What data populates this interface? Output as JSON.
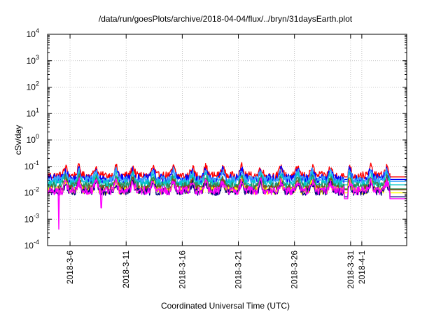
{
  "chart_data": {
    "type": "line",
    "title": "/data/run/goesPlots/archive/2018-04-04/flux/../bryn/31daysEarth.plot",
    "xlabel": "Coordinated Universal Time (UTC)",
    "ylabel": "cSv/day",
    "yscale": "log",
    "ylim": [
      0.0001,
      10000
    ],
    "xlim": [
      "2018-03-04",
      "2018-04-05"
    ],
    "grid": true,
    "legend": "none",
    "y_ticks": [
      {
        "base": "10",
        "exp": "-4"
      },
      {
        "base": "10",
        "exp": "-3"
      },
      {
        "base": "10",
        "exp": "-2"
      },
      {
        "base": "10",
        "exp": "-1"
      },
      {
        "base": "10",
        "exp": "0"
      },
      {
        "base": "10",
        "exp": "1"
      },
      {
        "base": "10",
        "exp": "2"
      },
      {
        "base": "10",
        "exp": "3"
      },
      {
        "base": "10",
        "exp": "4"
      }
    ],
    "x_ticks": [
      {
        "date": "2018-03-06",
        "label": "2018-3-6"
      },
      {
        "date": "2018-03-11",
        "label": "2018-3-11"
      },
      {
        "date": "2018-03-16",
        "label": "2018-3-16"
      },
      {
        "date": "2018-03-21",
        "label": "2018-3-21"
      },
      {
        "date": "2018-03-26",
        "label": "2018-3-26"
      },
      {
        "date": "2018-03-31",
        "label": "2018-3-31"
      },
      {
        "date": "2018-04-01",
        "label": "2018-4-1"
      }
    ],
    "series": [
      {
        "color": "#ff0000",
        "level": 0.045,
        "tail": 0.04,
        "spread": 0.3,
        "dips": []
      },
      {
        "color": "#0000ff",
        "level": 0.034,
        "tail": 0.032,
        "spread": 0.35,
        "dips": []
      },
      {
        "color": "#3aa8ff",
        "level": 0.03,
        "tail": 0.027,
        "spread": 0.32,
        "dips": []
      },
      {
        "color": "#00c8c8",
        "level": 0.022,
        "tail": 0.02,
        "spread": 0.32,
        "dips": []
      },
      {
        "color": "#2e8b57",
        "level": 0.018,
        "tail": 0.014,
        "spread": 0.3,
        "dips": []
      },
      {
        "color": "#8b4513",
        "level": 0.014,
        "tail": 0.013,
        "spread": 0.3,
        "dips": []
      },
      {
        "color": "#ffff00",
        "level": 0.012,
        "tail": 0.01,
        "spread": 0.28,
        "dips": []
      },
      {
        "color": "#000080",
        "level": 0.011,
        "tail": 0.007,
        "spread": 0.28,
        "dips": []
      },
      {
        "color": "#ff00ff",
        "level": 0.012,
        "tail": 0.006,
        "spread": 0.32,
        "dips": [
          {
            "date": "2018-03-05",
            "value": 0.00042
          },
          {
            "date": "2018-03-08.8",
            "value": 0.0027
          }
        ]
      }
    ]
  }
}
